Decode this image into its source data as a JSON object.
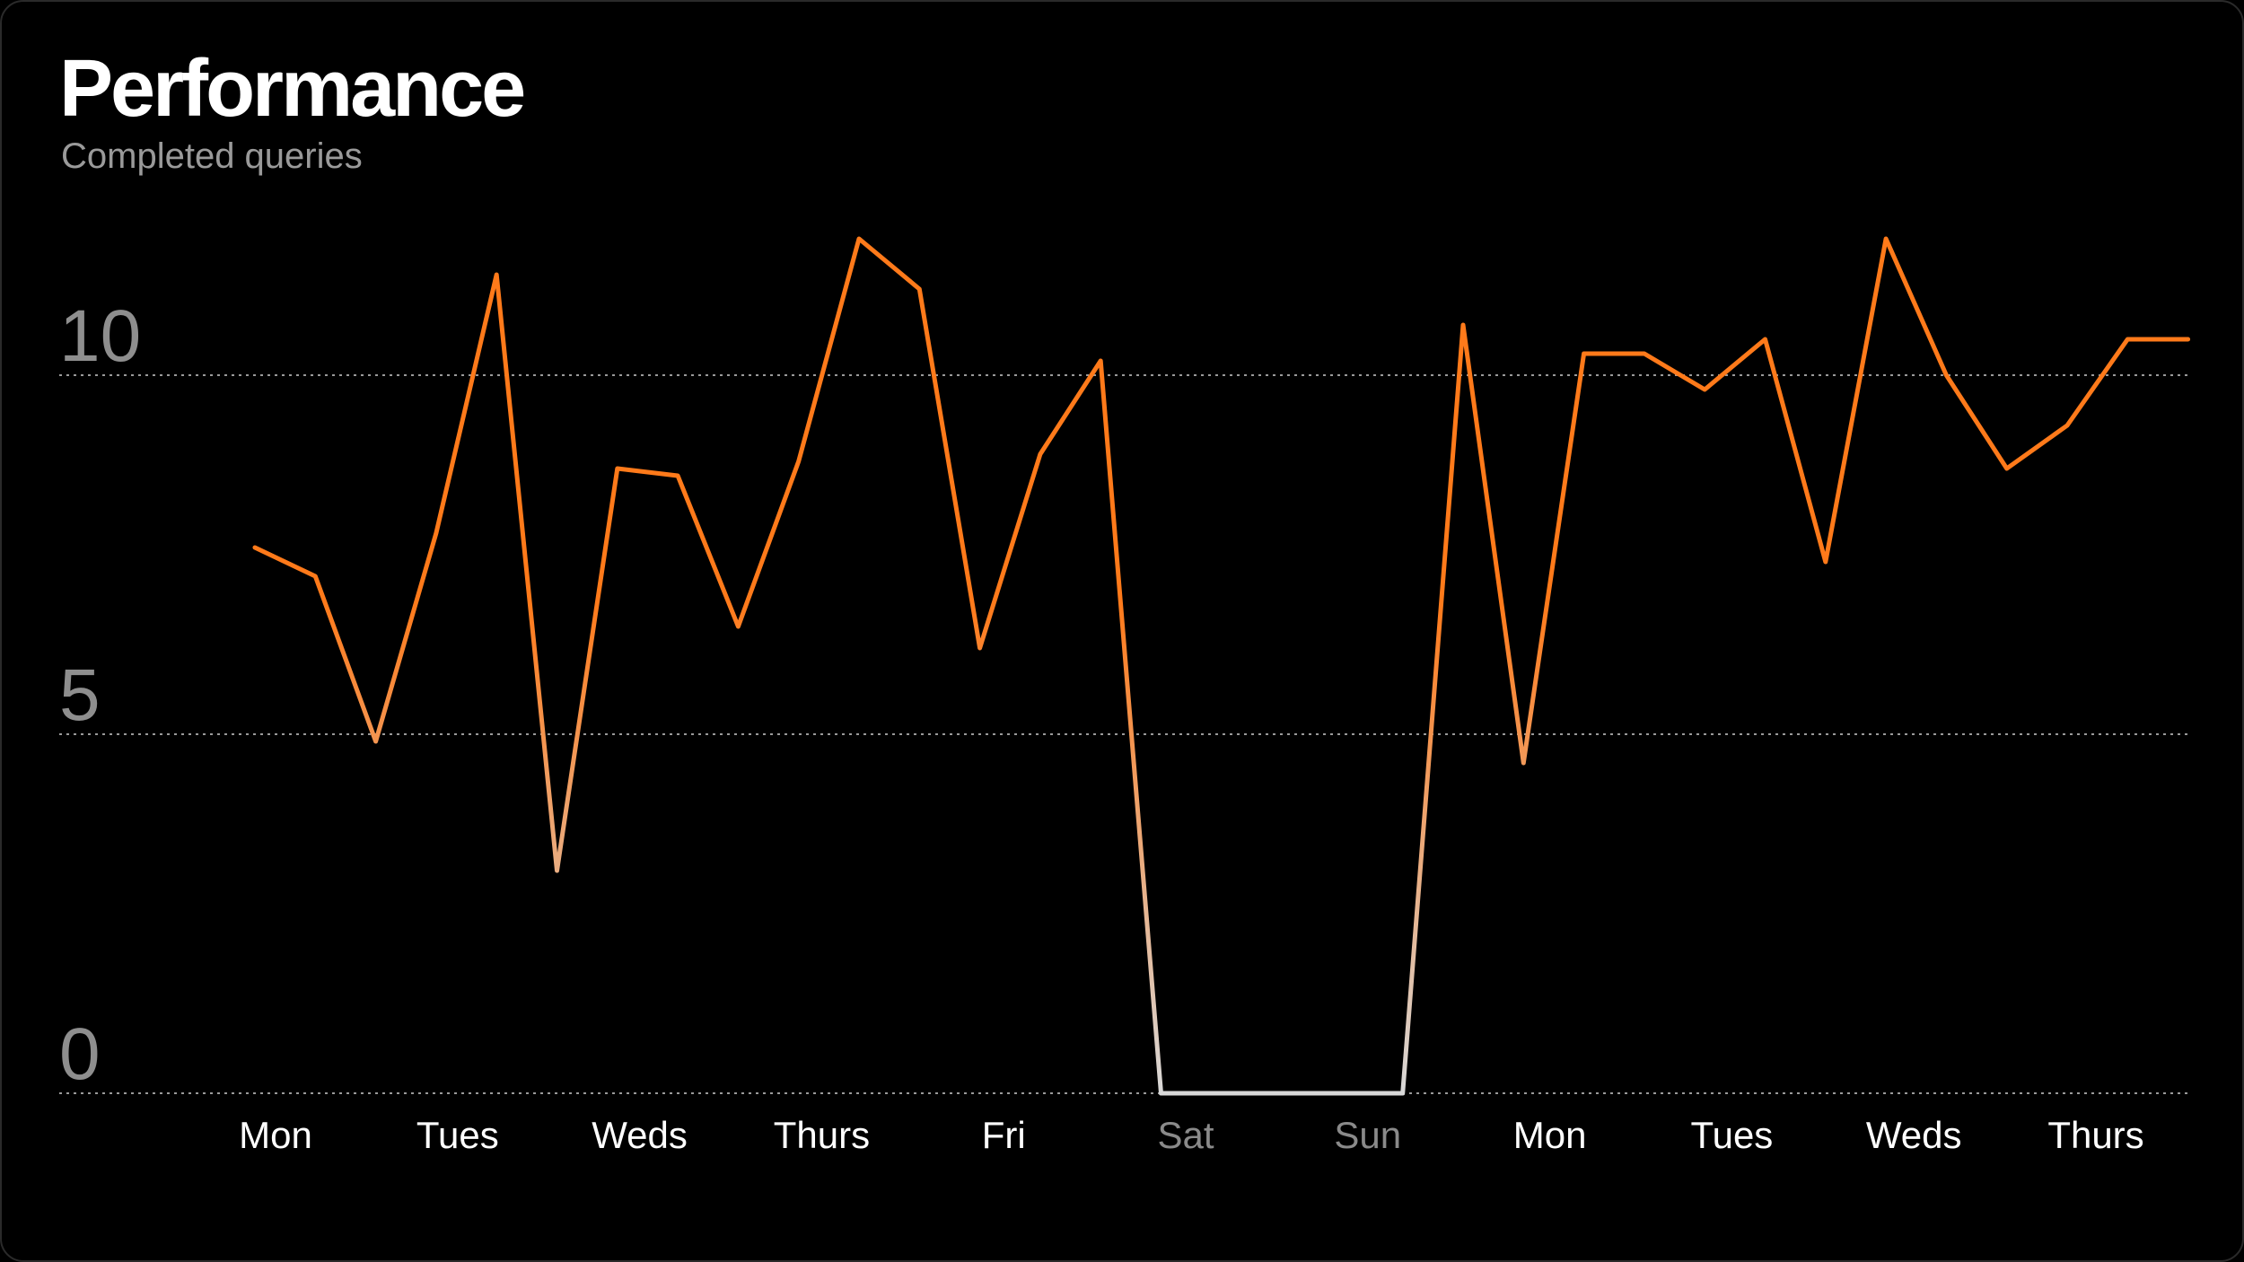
{
  "header": {
    "title": "Performance",
    "subtitle": "Completed queries"
  },
  "colors": {
    "line_top": "#ff7a1a",
    "line_bottom": "#d8d8d8",
    "grid": "#9a9a9a",
    "tick_active": "#ffffff",
    "tick_muted": "#8a8a8a"
  },
  "chart_data": {
    "type": "line",
    "title": "Performance",
    "subtitle": "Completed queries",
    "xlabel": "",
    "ylabel": "",
    "ylim": [
      0,
      12.5
    ],
    "y_ticks": [
      0,
      5,
      10
    ],
    "grid": true,
    "x_tick_labels": [
      {
        "label": "Mon",
        "muted": false
      },
      {
        "label": "Tues",
        "muted": false
      },
      {
        "label": "Weds",
        "muted": false
      },
      {
        "label": "Thurs",
        "muted": false
      },
      {
        "label": "Fri",
        "muted": false
      },
      {
        "label": "Sat",
        "muted": true
      },
      {
        "label": "Sun",
        "muted": true
      },
      {
        "label": "Mon",
        "muted": false
      },
      {
        "label": "Tues",
        "muted": false
      },
      {
        "label": "Weds",
        "muted": false
      },
      {
        "label": "Thurs",
        "muted": false
      }
    ],
    "series": [
      {
        "values": [
          7.6,
          7.2,
          4.9,
          7.8,
          11.4,
          3.1,
          8.7,
          8.6,
          6.5,
          8.8,
          11.9,
          11.2,
          6.2,
          8.9,
          10.2,
          0,
          0,
          0,
          0,
          0,
          10.7,
          4.6,
          10.3,
          10.3,
          9.8,
          10.5,
          7.4,
          11.9,
          10.0,
          8.7,
          9.3,
          10.5,
          10.5
        ]
      }
    ]
  }
}
